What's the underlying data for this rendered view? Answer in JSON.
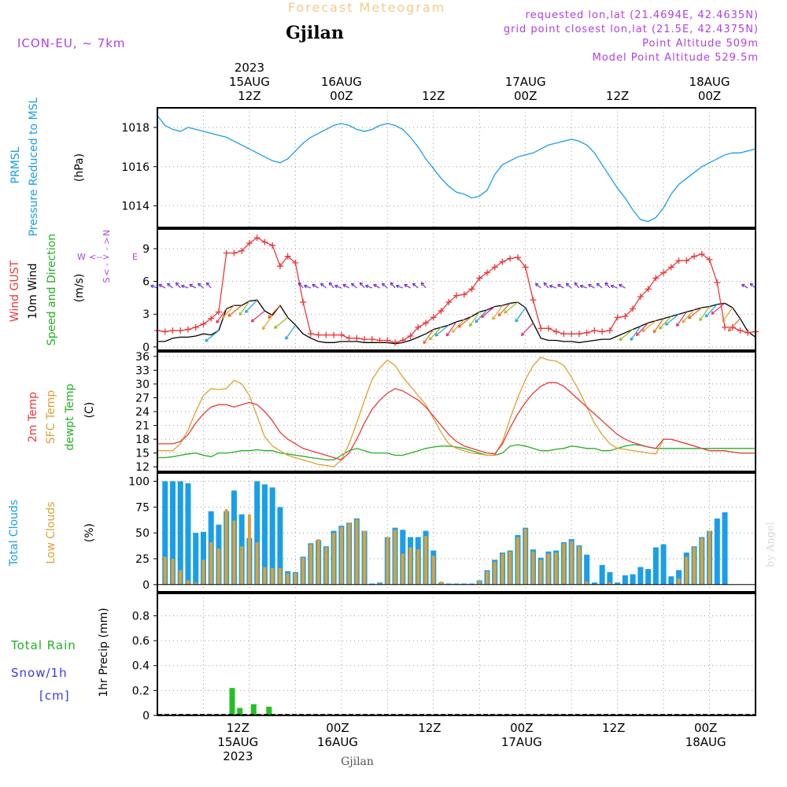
{
  "header": {
    "banner": "Forecast Meteogram",
    "location": "Gjilan",
    "model": "ICON-EU,  ~ 7km",
    "requested": "requested lon,lat (21.4694E, 42.4635N)",
    "grid_point": "grid point closest lon,lat (21.5E, 42.4375N)",
    "point_altitude": "Point Altitude 509m",
    "model_altitude": "Model Point Altitude 529.5m",
    "footer_location": "Gjilan",
    "watermark": "by Angel"
  },
  "time_axis": {
    "start_hour": 0,
    "end_hour": 78,
    "top_labels": [
      {
        "hour": 12,
        "lines": [
          "2023",
          "15AUG",
          "12Z"
        ]
      },
      {
        "hour": 24,
        "lines": [
          "16AUG",
          "00Z"
        ]
      },
      {
        "hour": 36,
        "lines": [
          "12Z"
        ]
      },
      {
        "hour": 48,
        "lines": [
          "17AUG",
          "00Z"
        ]
      },
      {
        "hour": 60,
        "lines": [
          "12Z"
        ]
      },
      {
        "hour": 72,
        "lines": [
          "18AUG",
          "00Z"
        ]
      }
    ],
    "bottom_labels": [
      {
        "hour": 10.5,
        "lines": [
          "12Z",
          "15AUG",
          "2023"
        ]
      },
      {
        "hour": 23.5,
        "lines": [
          "00Z",
          "16AUG"
        ]
      },
      {
        "hour": 35.5,
        "lines": [
          "12Z"
        ]
      },
      {
        "hour": 47.5,
        "lines": [
          "00Z",
          "17AUG"
        ]
      },
      {
        "hour": 59.5,
        "lines": [
          "12Z"
        ]
      },
      {
        "hour": 71.5,
        "lines": [
          "00Z",
          "18AUG"
        ]
      }
    ]
  },
  "panels": {
    "pressure": {
      "labels": [
        "PRMSL",
        "Pressure Reduced to MSL"
      ],
      "unit": "(hPa)",
      "color": "#1a9ee8"
    },
    "wind": {
      "labels": [
        "Wind GUST",
        "10m Wind",
        "Speed and Direction"
      ],
      "label_colors": [
        "#e83a3a",
        "#000000",
        "#22b022"
      ],
      "unit": "(m/s)",
      "compass": {
        "n": "N",
        "s": "S",
        "w": "W",
        "e": "E"
      },
      "compass_color": "#b040e0"
    },
    "temp": {
      "labels": [
        "2m Temp",
        "SFC Temp",
        "dewpt Temp"
      ],
      "label_colors": [
        "#e83a3a",
        "#e0a030",
        "#22b022"
      ],
      "unit": "(C)"
    },
    "clouds": {
      "labels": [
        "Total Clouds",
        "Low Clouds"
      ],
      "label_colors": [
        "#1a9ee8",
        "#e0a030"
      ],
      "unit": "(%)"
    },
    "precip": {
      "labels": [
        "Total  Rain",
        "Snow/1h",
        "[cm]"
      ],
      "label_colors": [
        "#22b022",
        "#3a3ae0",
        "#3a3ae0"
      ],
      "unit": "1hr Precip (mm)"
    }
  },
  "chart_data": [
    {
      "type": "line",
      "title": "PRMSL Pressure Reduced to MSL",
      "ylabel": "(hPa)",
      "ylim": [
        1012.9,
        1019.0
      ],
      "yticks": [
        1014,
        1016,
        1018
      ],
      "x_hours": [
        0,
        1,
        2,
        3,
        4,
        5,
        6,
        7,
        8,
        9,
        10,
        11,
        12,
        13,
        14,
        15,
        16,
        17,
        18,
        19,
        20,
        21,
        22,
        23,
        24,
        25,
        26,
        27,
        28,
        29,
        30,
        31,
        32,
        33,
        34,
        35,
        36,
        37,
        38,
        39,
        40,
        41,
        42,
        43,
        44,
        45,
        46,
        47,
        48,
        49,
        50,
        51,
        52,
        53,
        54,
        55,
        56,
        57,
        58,
        59,
        60,
        61,
        62,
        63,
        64,
        65,
        66,
        67,
        68,
        69,
        70,
        71,
        72,
        73,
        74,
        75,
        76,
        77,
        78
      ],
      "series": [
        {
          "name": "PRMSL",
          "values": [
            1018.6,
            1018.1,
            1017.9,
            1017.8,
            1018.0,
            1017.9,
            1017.8,
            1017.7,
            1017.6,
            1017.5,
            1017.3,
            1017.1,
            1016.9,
            1016.7,
            1016.5,
            1016.3,
            1016.2,
            1016.4,
            1016.8,
            1017.2,
            1017.5,
            1017.7,
            1017.9,
            1018.1,
            1018.2,
            1018.1,
            1017.9,
            1017.8,
            1017.9,
            1018.1,
            1018.2,
            1018.1,
            1017.9,
            1017.5,
            1017.0,
            1016.4,
            1015.9,
            1015.4,
            1015.0,
            1014.7,
            1014.6,
            1014.4,
            1014.5,
            1014.8,
            1015.6,
            1016.1,
            1016.3,
            1016.5,
            1016.6,
            1016.7,
            1016.9,
            1017.1,
            1017.2,
            1017.3,
            1017.4,
            1017.3,
            1017.1,
            1016.7,
            1016.1,
            1015.5,
            1014.9,
            1014.4,
            1013.8,
            1013.3,
            1013.2,
            1013.4,
            1013.9,
            1014.6,
            1015.1,
            1015.4,
            1015.7,
            1016.0,
            1016.2,
            1016.4,
            1016.6,
            1016.7,
            1016.7,
            1016.8,
            1016.9
          ]
        }
      ]
    },
    {
      "type": "line",
      "title": "Wind GUST / 10m Wind Speed and Direction",
      "ylabel": "(m/s)",
      "ylim": [
        -0.3,
        10.8
      ],
      "yticks": [
        0,
        3,
        6,
        9
      ],
      "x_hours": [
        0,
        1,
        2,
        3,
        4,
        5,
        6,
        7,
        8,
        9,
        10,
        11,
        12,
        13,
        14,
        15,
        16,
        17,
        18,
        19,
        20,
        21,
        22,
        23,
        24,
        25,
        26,
        27,
        28,
        29,
        30,
        31,
        32,
        33,
        34,
        35,
        36,
        37,
        38,
        39,
        40,
        41,
        42,
        43,
        44,
        45,
        46,
        47,
        48,
        49,
        50,
        51,
        52,
        53,
        54,
        55,
        56,
        57,
        58,
        59,
        60,
        61,
        62,
        63,
        64,
        65,
        66,
        67,
        68,
        69,
        70,
        71,
        72,
        73,
        74,
        75,
        76,
        77,
        78
      ],
      "series": [
        {
          "name": "Wind GUST",
          "values": [
            1.5,
            1.4,
            1.5,
            1.5,
            1.6,
            1.8,
            2.1,
            2.6,
            3.2,
            8.6,
            8.6,
            8.8,
            9.5,
            10.0,
            9.6,
            9.3,
            7.4,
            8.3,
            7.7,
            4.1,
            1.2,
            1.1,
            1.1,
            1.1,
            1.1,
            0.8,
            0.8,
            0.7,
            0.7,
            0.6,
            0.6,
            0.4,
            0.6,
            1.0,
            1.8,
            2.2,
            2.7,
            3.3,
            4.1,
            4.7,
            4.8,
            5.3,
            6.3,
            6.8,
            7.3,
            7.8,
            8.1,
            8.2,
            7.3,
            4.3,
            1.7,
            1.7,
            1.4,
            1.2,
            1.2,
            1.2,
            1.3,
            1.5,
            1.4,
            1.5,
            2.7,
            2.8,
            3.5,
            4.6,
            5.3,
            6.3,
            6.8,
            7.3,
            7.9,
            7.9,
            8.3,
            8.5,
            8.0,
            5.9,
            1.8,
            1.8,
            1.5,
            1.3,
            1.4
          ]
        },
        {
          "name": "10m Wind",
          "values": [
            0.5,
            0.5,
            0.8,
            0.9,
            0.9,
            1.0,
            1.2,
            1.1,
            1.5,
            3.5,
            3.8,
            3.8,
            4.2,
            4.3,
            3.3,
            2.9,
            3.8,
            2.7,
            2.0,
            1.2,
            0.8,
            0.5,
            0.4,
            0.4,
            0.5,
            0.5,
            0.5,
            0.4,
            0.4,
            0.4,
            0.4,
            0.3,
            0.4,
            0.6,
            0.9,
            1.2,
            1.6,
            1.8,
            2.0,
            2.3,
            2.5,
            2.8,
            3.2,
            3.4,
            3.7,
            3.8,
            4.0,
            4.1,
            3.6,
            2.2,
            0.8,
            0.6,
            0.6,
            0.5,
            0.5,
            0.4,
            0.5,
            0.6,
            0.7,
            0.7,
            1.0,
            1.3,
            1.6,
            1.9,
            2.2,
            2.4,
            2.6,
            2.8,
            3.0,
            3.2,
            3.4,
            3.6,
            3.7,
            3.9,
            4.0,
            3.6,
            2.6,
            1.4,
            0.9
          ]
        }
      ],
      "arrow_color_rule": "direction-dependent"
    },
    {
      "type": "line",
      "title": "2m Temp / SFC Temp / dewpt Temp",
      "ylabel": "(C)",
      "ylim": [
        11.0,
        37.0
      ],
      "yticks": [
        12,
        15,
        18,
        21,
        24,
        27,
        30,
        33,
        36
      ],
      "x_hours": [
        0,
        1,
        2,
        3,
        4,
        5,
        6,
        7,
        8,
        9,
        10,
        11,
        12,
        13,
        14,
        15,
        16,
        17,
        18,
        19,
        20,
        21,
        22,
        23,
        24,
        25,
        26,
        27,
        28,
        29,
        30,
        31,
        32,
        33,
        34,
        35,
        36,
        37,
        38,
        39,
        40,
        41,
        42,
        43,
        44,
        45,
        46,
        47,
        48,
        49,
        50,
        51,
        52,
        53,
        54,
        55,
        56,
        57,
        58,
        59,
        60,
        61,
        62,
        63,
        64,
        65,
        66,
        67,
        68,
        69,
        70,
        71,
        72,
        73,
        74,
        75,
        76,
        77,
        78
      ],
      "series": [
        {
          "name": "2m Temp",
          "values": [
            17.0,
            17.0,
            17.0,
            17.5,
            19.0,
            21.5,
            23.5,
            25.0,
            25.5,
            25.5,
            25.0,
            25.5,
            26.0,
            25.5,
            24.0,
            22.0,
            19.5,
            18.0,
            17.0,
            16.0,
            15.5,
            15.0,
            14.5,
            14.0,
            13.5,
            15.0,
            18.0,
            21.5,
            24.5,
            26.5,
            28.0,
            29.0,
            28.5,
            27.5,
            26.5,
            25.0,
            23.0,
            21.0,
            19.0,
            17.5,
            16.5,
            16.0,
            15.5,
            15.0,
            14.8,
            17.0,
            20.5,
            23.5,
            26.0,
            28.0,
            29.5,
            30.3,
            30.3,
            29.5,
            28.0,
            26.5,
            25.0,
            23.5,
            22.0,
            20.5,
            19.0,
            18.0,
            17.3,
            16.8,
            16.3,
            16.0,
            18.0,
            18.0,
            17.5,
            17.0,
            16.5,
            16.0,
            15.5,
            15.5,
            15.5,
            15.2,
            15.0,
            15.0,
            15.0
          ]
        },
        {
          "name": "SFC Temp",
          "values": [
            15.5,
            15.5,
            15.5,
            17.0,
            20.0,
            24.0,
            27.5,
            29.0,
            28.8,
            29.0,
            30.8,
            30.0,
            27.5,
            23.0,
            18.5,
            16.5,
            15.5,
            14.5,
            14.0,
            13.5,
            13.0,
            12.5,
            12.3,
            12.0,
            13.5,
            17.0,
            21.5,
            26.5,
            31.0,
            33.5,
            35.2,
            34.0,
            31.5,
            29.5,
            27.5,
            25.5,
            22.5,
            19.5,
            17.0,
            16.0,
            15.5,
            15.0,
            14.8,
            14.5,
            14.5,
            17.5,
            22.5,
            27.0,
            31.0,
            34.0,
            35.8,
            35.2,
            35.0,
            34.0,
            31.5,
            28.5,
            25.0,
            21.5,
            19.0,
            17.0,
            16.0,
            15.8,
            15.5,
            15.3,
            15.0,
            14.8,
            18.0,
            18.0,
            17.5,
            17.0,
            16.5,
            16.0,
            15.5,
            15.5,
            15.5,
            15.2,
            15.0,
            15.0,
            15.0
          ]
        },
        {
          "name": "dewpt Temp",
          "values": [
            14.0,
            14.0,
            14.2,
            14.5,
            14.8,
            15.0,
            14.5,
            14.2,
            15.0,
            15.0,
            15.2,
            15.5,
            15.5,
            15.7,
            15.5,
            15.5,
            15.0,
            14.8,
            14.5,
            14.3,
            14.0,
            13.8,
            13.5,
            13.5,
            14.5,
            15.5,
            16.0,
            15.5,
            15.0,
            15.0,
            15.0,
            14.5,
            14.5,
            15.0,
            15.5,
            16.0,
            16.3,
            16.5,
            16.5,
            16.3,
            16.0,
            15.5,
            15.0,
            14.5,
            14.5,
            15.0,
            16.5,
            16.8,
            16.5,
            16.0,
            15.5,
            15.5,
            15.8,
            16.0,
            16.5,
            16.3,
            16.0,
            16.0,
            15.5,
            15.5,
            16.0,
            16.5,
            16.8,
            16.7,
            16.3,
            16.0,
            16.0,
            16.0,
            16.0,
            16.0,
            16.0,
            16.0,
            16.0,
            16.0,
            16.0,
            16.0,
            16.0,
            16.0,
            16.0
          ]
        }
      ]
    },
    {
      "type": "bar",
      "title": "Total Clouds / Low Clouds",
      "ylabel": "(%)",
      "ylim": [
        -7,
        108
      ],
      "yticks": [
        0,
        25,
        50,
        75,
        100
      ],
      "x_hours": [
        1,
        2,
        3,
        4,
        5,
        6,
        7,
        8,
        9,
        10,
        11,
        12,
        13,
        14,
        15,
        16,
        17,
        18,
        19,
        20,
        21,
        22,
        23,
        24,
        25,
        26,
        27,
        28,
        29,
        30,
        31,
        32,
        33,
        34,
        35,
        36,
        37,
        38,
        39,
        40,
        41,
        42,
        43,
        44,
        45,
        46,
        47,
        48,
        49,
        50,
        51,
        52,
        53,
        54,
        55,
        56,
        57,
        58,
        59,
        60,
        61,
        62,
        63,
        64,
        65,
        66,
        67,
        68,
        69,
        70,
        71,
        72,
        73,
        74,
        75,
        76
      ],
      "series": [
        {
          "name": "Total Clouds",
          "values": [
            100,
            100,
            100,
            98,
            50,
            51,
            71,
            58,
            71,
            91,
            68,
            45,
            100,
            97,
            94,
            75,
            13,
            12,
            27,
            40,
            43,
            37,
            52,
            57,
            60,
            64,
            52,
            1,
            2,
            46,
            55,
            53,
            46,
            46,
            52,
            33,
            2,
            1,
            1,
            1,
            1,
            4,
            14,
            24,
            31,
            33,
            48,
            55,
            34,
            26,
            32,
            33,
            41,
            44,
            38,
            29,
            2,
            19,
            12,
            2,
            9,
            10,
            17,
            15,
            36,
            39,
            8,
            14,
            31,
            37,
            46,
            52,
            64,
            70
          ]
        },
        {
          "name": "Low Clouds",
          "values": [
            27,
            25,
            14,
            4,
            2,
            24,
            41,
            35,
            73,
            62,
            37,
            68,
            41,
            17,
            16,
            16,
            11,
            11,
            26,
            39,
            44,
            36,
            50,
            56,
            60,
            63,
            52,
            0,
            1,
            46,
            53,
            30,
            36,
            34,
            47,
            28,
            3,
            0,
            0,
            0,
            0,
            3,
            13,
            22,
            30,
            32,
            46,
            54,
            32,
            24,
            30,
            31,
            40,
            42,
            37,
            3,
            0,
            0,
            2,
            0,
            0,
            0,
            0,
            0,
            0,
            0,
            0,
            6,
            27,
            36,
            45,
            52,
            0,
            0
          ]
        }
      ]
    },
    {
      "type": "bar",
      "title": "1hr Precip",
      "ylabel": "1hr Precip (mm)",
      "ylim": [
        0,
        0.98
      ],
      "yticks": [
        0,
        0.2,
        0.4,
        0.6,
        0.8
      ],
      "x_hours": [
        9.7,
        10.7,
        12.5,
        14.5
      ],
      "series": [
        {
          "name": "Total Rain",
          "values": [
            0.22,
            0.06,
            0.09,
            0.07
          ]
        }
      ]
    }
  ]
}
